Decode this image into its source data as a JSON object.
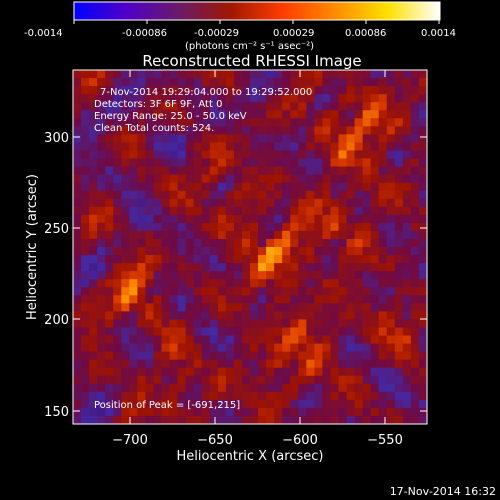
{
  "colorbar": {
    "tick_labels": [
      "-0.0014",
      "-0.00086",
      "-0.00029",
      "0.00029",
      "0.00086",
      "0.0014"
    ],
    "units": "(photons cm⁻² s⁻¹ asec⁻²)",
    "gradient_colors": [
      "#0000ff",
      "#5000c8",
      "#6a1a6a",
      "#a01800",
      "#ff3c00",
      "#ff8c00",
      "#ffe000",
      "#ffffff"
    ]
  },
  "plot": {
    "title": "Reconstructed RHESSI Image",
    "xlabel": "Heliocentric X (arcsec)",
    "ylabel": "Heliocentric Y (arcsec)",
    "x_ticks": [
      "−700",
      "−650",
      "−600",
      "−550"
    ],
    "y_ticks": [
      "150",
      "200",
      "250",
      "300"
    ],
    "overlay_lines": [
      "7-Nov-2014 19:29:04.000 to 19:29:52.000",
      "Detectors: 3F 6F 9F, Att 0",
      "Energy Range: 25.0 - 50.0 keV",
      "Clean    Total counts: 524."
    ],
    "peak_text": "Position of Peak = [-691,215]"
  },
  "footer": {
    "timestamp": "17-Nov-2014 16:32"
  }
}
